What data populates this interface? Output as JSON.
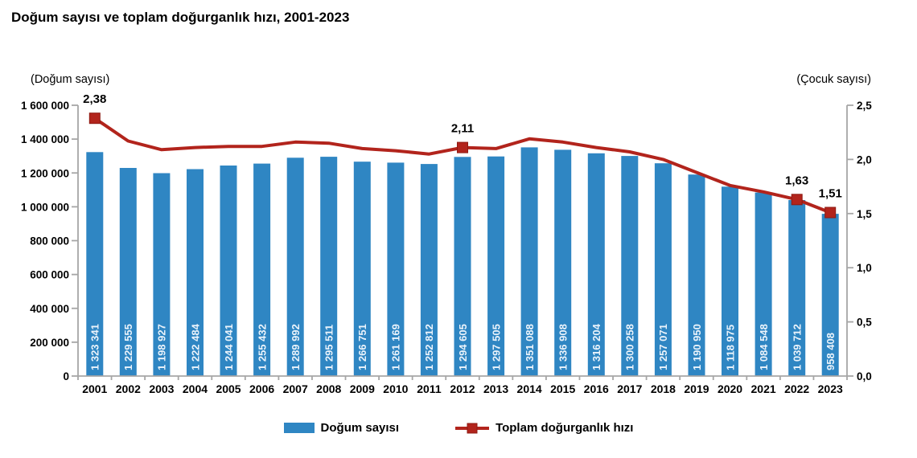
{
  "title": "Doğum sayısı ve toplam doğurganlık hızı, 2001-2023",
  "left_axis_title": "(Doğum sayısı)",
  "right_axis_title": "(Çocuk sayısı)",
  "legend": {
    "bars": "Doğum sayısı",
    "line": "Toplam doğurganlık hızı"
  },
  "colors": {
    "bar": "#2F86C3",
    "bar_label": "#EAF3FB",
    "line": "#B2241C",
    "marker_edge": "#8E1A12",
    "axis": "#A6A6A6",
    "text": "#000000"
  },
  "chart_data": {
    "type": "bar",
    "subtype": "combo bar + line, dual axis",
    "title": "Doğum sayısı ve toplam doğurganlık hızı, 2001-2023",
    "categories": [
      "2001",
      "2002",
      "2003",
      "2004",
      "2005",
      "2006",
      "2007",
      "2008",
      "2009",
      "2010",
      "2011",
      "2012",
      "2013",
      "2014",
      "2015",
      "2016",
      "2017",
      "2018",
      "2019",
      "2020",
      "2021",
      "2022",
      "2023"
    ],
    "series": [
      {
        "name": "Doğum sayısı",
        "type": "bar",
        "axis": "left",
        "values": [
          1323341,
          1229555,
          1198927,
          1222484,
          1244041,
          1255432,
          1289992,
          1295511,
          1266751,
          1261169,
          1252812,
          1294605,
          1297505,
          1351088,
          1336908,
          1316204,
          1300258,
          1257071,
          1190950,
          1118975,
          1084548,
          1039712,
          958408
        ],
        "value_labels": [
          "1 323 341",
          "1 229 555",
          "1 198 927",
          "1 222 484",
          "1 244 041",
          "1 255 432",
          "1 289 992",
          "1 295 511",
          "1 266 751",
          "1 261 169",
          "1 252 812",
          "1 294 605",
          "1 297 505",
          "1 351 088",
          "1 336 908",
          "1 316 204",
          "1 300 258",
          "1 257 071",
          "1 190 950",
          "1 118 975",
          "1 084 548",
          "1 039 712",
          "958 408"
        ]
      },
      {
        "name": "Toplam doğurganlık hızı",
        "type": "line",
        "axis": "right",
        "values": [
          2.38,
          2.17,
          2.09,
          2.11,
          2.12,
          2.12,
          2.16,
          2.15,
          2.1,
          2.08,
          2.05,
          2.11,
          2.1,
          2.19,
          2.16,
          2.11,
          2.07,
          2.0,
          1.88,
          1.76,
          1.7,
          1.63,
          1.51
        ],
        "point_labels": [
          {
            "year": "2001",
            "index": 0,
            "label": "2,38"
          },
          {
            "year": "2012",
            "index": 11,
            "label": "2,11"
          },
          {
            "year": "2022",
            "index": 21,
            "label": "1,63"
          },
          {
            "year": "2023",
            "index": 22,
            "label": "1,51"
          }
        ]
      }
    ],
    "left_axis": {
      "label": "(Doğum sayısı)",
      "min": 0,
      "max": 1600000,
      "step": 200000,
      "tick_labels": [
        "0",
        "200 000",
        "400 000",
        "600 000",
        "800 000",
        "1 000 000",
        "1 200 000",
        "1 400 000",
        "1 600 000"
      ]
    },
    "right_axis": {
      "label": "(Çocuk sayısı)",
      "min": 0,
      "max": 2.5,
      "step": 0.5,
      "tick_labels": [
        "0,0",
        "0,5",
        "1,0",
        "1,5",
        "2,0",
        "2,5"
      ]
    },
    "grid": false,
    "legend_position": "bottom"
  }
}
